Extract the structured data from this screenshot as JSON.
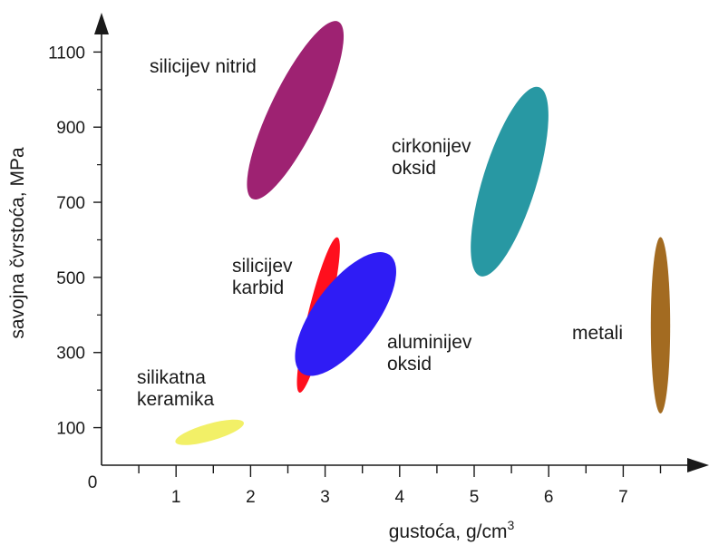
{
  "chart_data": {
    "type": "scatter",
    "xlabel": "gustoća, g/cm",
    "xlabel_sup": "3",
    "ylabel": "savojna čvrstoća, MPa",
    "origin_label": "0",
    "xlim": [
      0,
      7.75
    ],
    "ylim": [
      0,
      1200
    ],
    "x_ticks": [
      1,
      2,
      3,
      4,
      5,
      6,
      7
    ],
    "x_minor_step": 0.5,
    "y_ticks": [
      100,
      300,
      500,
      700,
      900,
      1100
    ],
    "grid": false,
    "regions": [
      {
        "id": "silicon-nitride",
        "lines": [
          "silicijev nitrid"
        ],
        "color": "#9e2272",
        "from": [
          2.05,
          720
        ],
        "to": [
          3.15,
          1170
        ],
        "width_ratio": 0.25
      },
      {
        "id": "zirconia",
        "lines": [
          "cirkonijev",
          "oksid"
        ],
        "color": "#2898a3",
        "from": [
          5.1,
          515
        ],
        "to": [
          5.85,
          995
        ],
        "width_ratio": 0.27
      },
      {
        "id": "silicon-carbide",
        "lines": [
          "silicijev",
          "karbid"
        ],
        "color": "#ff0f1d",
        "from": [
          2.67,
          205
        ],
        "to": [
          3.15,
          595
        ],
        "width_ratio": 0.13
      },
      {
        "id": "alumina",
        "lines": [
          "aluminijev",
          "oksid"
        ],
        "color": "#2f1cf5",
        "from": [
          2.72,
          255
        ],
        "to": [
          3.83,
          550
        ],
        "width_ratio": 0.42
      },
      {
        "id": "metals",
        "lines": [
          "metali"
        ],
        "color": "#a36b21",
        "from": [
          7.5,
          150
        ],
        "to": [
          7.5,
          595
        ],
        "width_ratio": 0.11
      },
      {
        "id": "silicate-ceramics",
        "lines": [
          "silikatna",
          "keramika"
        ],
        "color": "#f2f067",
        "from": [
          1.05,
          65
        ],
        "to": [
          1.85,
          110
        ],
        "width_ratio": 0.24
      }
    ]
  }
}
